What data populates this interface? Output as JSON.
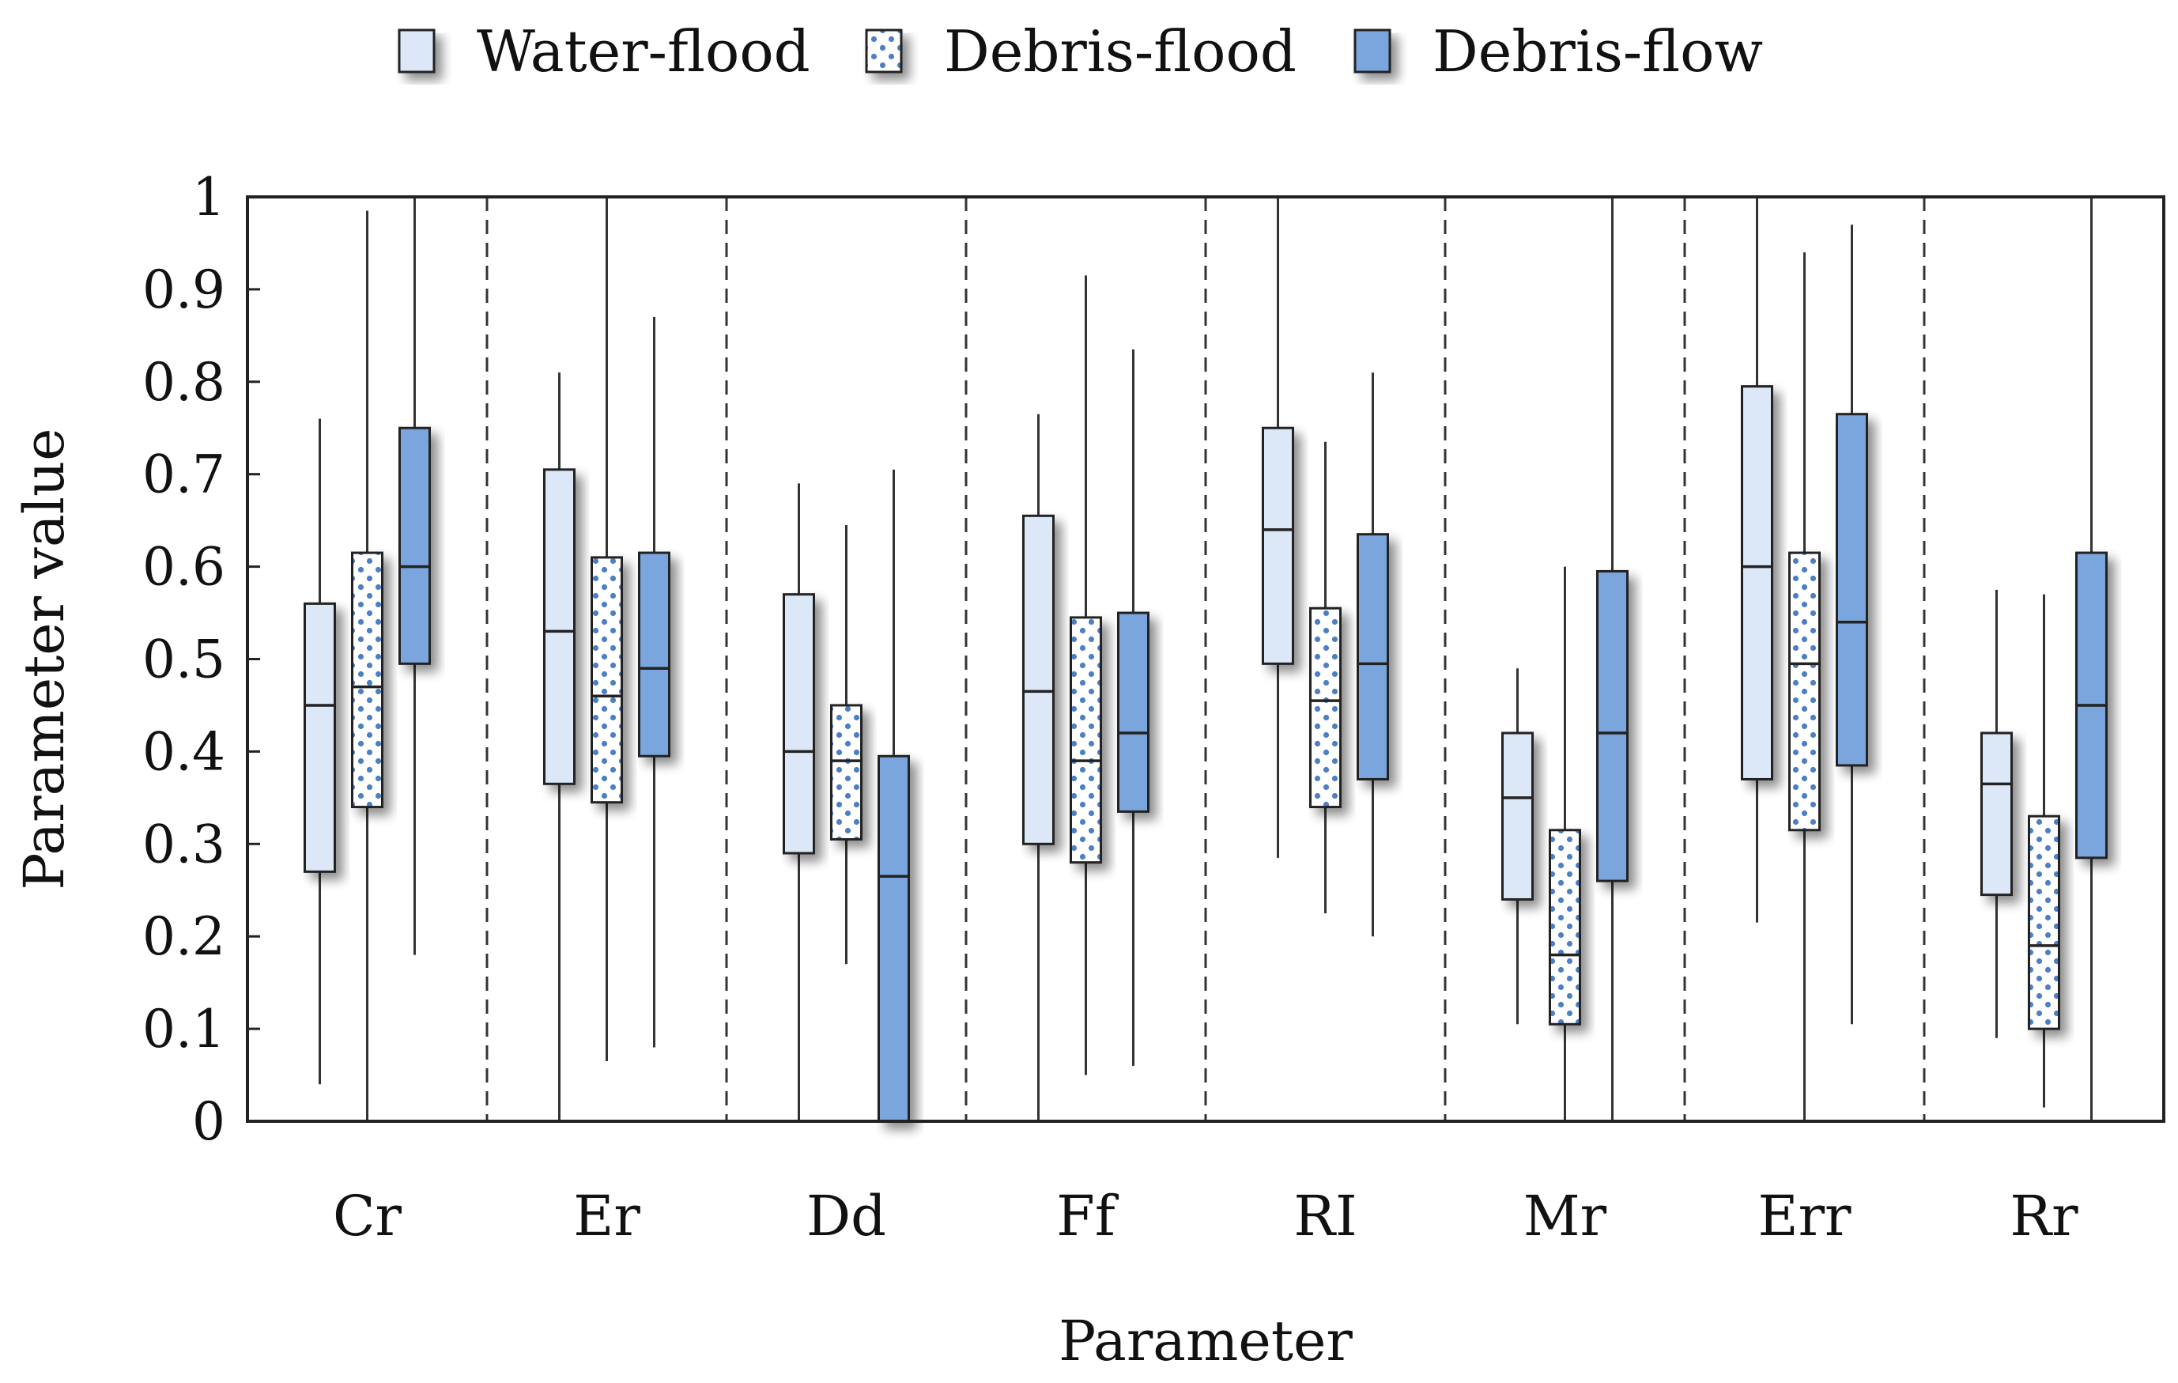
{
  "chart_data": {
    "type": "boxplot",
    "xlabel": "Parameter",
    "ylabel": "Parameter value",
    "ylim": [
      0,
      1
    ],
    "yticks": [
      0,
      0.1,
      0.2,
      0.3,
      0.4,
      0.5,
      0.6,
      0.7,
      0.8,
      0.9,
      1
    ],
    "ytick_labels": [
      "0",
      "0.1",
      "0.2",
      "0.3",
      "0.4",
      "0.5",
      "0.6",
      "0.7",
      "0.8",
      "0.9",
      "1"
    ],
    "grid": false,
    "legend_position": "top",
    "categories": [
      "Cr",
      "Er",
      "Dd",
      "Ff",
      "RI",
      "Mr",
      "Err",
      "Rr"
    ],
    "series": [
      {
        "name": "Water-flood",
        "fill": "#dce8f7",
        "pattern": "solid",
        "boxes": [
          {
            "min": 0.04,
            "q1": 0.27,
            "median": 0.45,
            "q3": 0.56,
            "max": 0.76
          },
          {
            "min": 0.0,
            "q1": 0.365,
            "median": 0.53,
            "q3": 0.705,
            "max": 0.81
          },
          {
            "min": 0.0,
            "q1": 0.29,
            "median": 0.4,
            "q3": 0.57,
            "max": 0.69
          },
          {
            "min": 0.0,
            "q1": 0.3,
            "median": 0.465,
            "q3": 0.655,
            "max": 0.765
          },
          {
            "min": 0.285,
            "q1": 0.495,
            "median": 0.64,
            "q3": 0.75,
            "max": 1.0
          },
          {
            "min": 0.105,
            "q1": 0.24,
            "median": 0.35,
            "q3": 0.42,
            "max": 0.49
          },
          {
            "min": 0.215,
            "q1": 0.37,
            "median": 0.6,
            "q3": 0.795,
            "max": 1.0
          },
          {
            "min": 0.09,
            "q1": 0.245,
            "median": 0.365,
            "q3": 0.42,
            "max": 0.575
          }
        ]
      },
      {
        "name": "Debris-flood",
        "fill": "#ffffff",
        "pattern": "dots",
        "dot_color": "#4d7fc4",
        "boxes": [
          {
            "min": 0.0,
            "q1": 0.34,
            "median": 0.47,
            "q3": 0.615,
            "max": 0.985
          },
          {
            "min": 0.065,
            "q1": 0.345,
            "median": 0.46,
            "q3": 0.61,
            "max": 1.0
          },
          {
            "min": 0.17,
            "q1": 0.305,
            "median": 0.39,
            "q3": 0.45,
            "max": 0.645
          },
          {
            "min": 0.05,
            "q1": 0.28,
            "median": 0.39,
            "q3": 0.545,
            "max": 0.915
          },
          {
            "min": 0.225,
            "q1": 0.34,
            "median": 0.455,
            "q3": 0.555,
            "max": 0.735
          },
          {
            "min": 0.0,
            "q1": 0.105,
            "median": 0.18,
            "q3": 0.315,
            "max": 0.6
          },
          {
            "min": 0.0,
            "q1": 0.315,
            "median": 0.495,
            "q3": 0.615,
            "max": 0.94
          },
          {
            "min": 0.015,
            "q1": 0.1,
            "median": 0.19,
            "q3": 0.33,
            "max": 0.57
          }
        ]
      },
      {
        "name": "Debris-flow",
        "fill": "#7aa6dd",
        "pattern": "solid",
        "boxes": [
          {
            "min": 0.18,
            "q1": 0.495,
            "median": 0.6,
            "q3": 0.75,
            "max": 1.0
          },
          {
            "min": 0.08,
            "q1": 0.395,
            "median": 0.49,
            "q3": 0.615,
            "max": 0.87
          },
          {
            "min": 0.0,
            "q1": 0.0,
            "median": 0.265,
            "q3": 0.395,
            "max": 0.705
          },
          {
            "min": 0.06,
            "q1": 0.335,
            "median": 0.42,
            "q3": 0.55,
            "max": 0.835
          },
          {
            "min": 0.2,
            "q1": 0.37,
            "median": 0.495,
            "q3": 0.635,
            "max": 0.81
          },
          {
            "min": 0.0,
            "q1": 0.26,
            "median": 0.42,
            "q3": 0.595,
            "max": 1.0
          },
          {
            "min": 0.105,
            "q1": 0.385,
            "median": 0.54,
            "q3": 0.765,
            "max": 0.97
          },
          {
            "min": 0.0,
            "q1": 0.285,
            "median": 0.45,
            "q3": 0.615,
            "max": 1.0
          }
        ]
      }
    ]
  }
}
